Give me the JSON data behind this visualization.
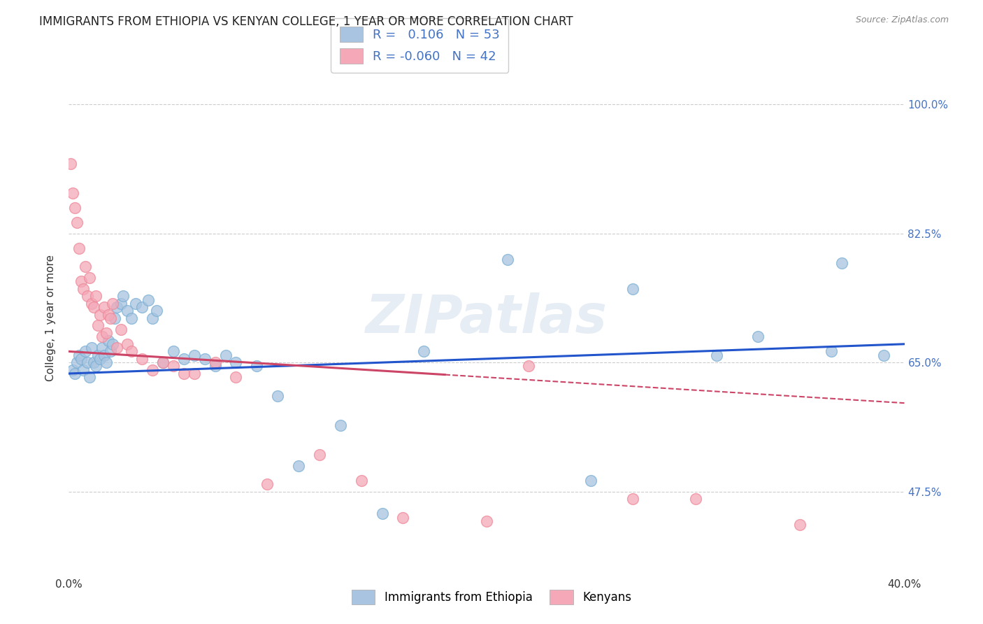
{
  "title": "IMMIGRANTS FROM ETHIOPIA VS KENYAN COLLEGE, 1 YEAR OR MORE CORRELATION CHART",
  "source": "Source: ZipAtlas.com",
  "ylabel": "College, 1 year or more",
  "xlim": [
    0.0,
    40.0
  ],
  "ylim": [
    38.0,
    104.0
  ],
  "watermark": "ZIPatlas",
  "legend_r1": "R =   0.106   N = 53",
  "legend_r2": "R = -0.060   N = 42",
  "blue_scatter_x": [
    0.2,
    0.3,
    0.4,
    0.5,
    0.6,
    0.7,
    0.8,
    0.9,
    1.0,
    1.1,
    1.2,
    1.3,
    1.4,
    1.5,
    1.6,
    1.7,
    1.8,
    1.9,
    2.0,
    2.1,
    2.2,
    2.3,
    2.5,
    2.6,
    2.8,
    3.0,
    3.2,
    3.5,
    3.8,
    4.0,
    4.2,
    4.5,
    5.0,
    5.5,
    6.0,
    6.5,
    7.0,
    7.5,
    8.0,
    9.0,
    10.0,
    11.0,
    13.0,
    15.0,
    17.0,
    21.0,
    27.0,
    33.0,
    37.0,
    39.0,
    36.5,
    31.0,
    25.0
  ],
  "blue_scatter_y": [
    64.0,
    63.5,
    65.0,
    66.0,
    65.5,
    64.0,
    66.5,
    65.0,
    63.0,
    67.0,
    65.0,
    64.5,
    66.0,
    65.5,
    67.0,
    66.0,
    65.0,
    68.0,
    66.5,
    67.5,
    71.0,
    72.5,
    73.0,
    74.0,
    72.0,
    71.0,
    73.0,
    72.5,
    73.5,
    71.0,
    72.0,
    65.0,
    66.5,
    65.5,
    66.0,
    65.5,
    64.5,
    66.0,
    65.0,
    64.5,
    60.5,
    51.0,
    56.5,
    44.5,
    66.5,
    79.0,
    75.0,
    68.5,
    78.5,
    66.0,
    66.5,
    66.0,
    49.0
  ],
  "pink_scatter_x": [
    0.1,
    0.2,
    0.3,
    0.4,
    0.5,
    0.6,
    0.7,
    0.8,
    0.9,
    1.0,
    1.1,
    1.2,
    1.3,
    1.4,
    1.5,
    1.6,
    1.7,
    1.8,
    1.9,
    2.0,
    2.1,
    2.3,
    2.5,
    2.8,
    3.0,
    3.5,
    4.0,
    4.5,
    5.0,
    5.5,
    6.0,
    7.0,
    8.0,
    9.5,
    12.0,
    14.0,
    16.0,
    20.0,
    22.0,
    27.0,
    30.0,
    35.0
  ],
  "pink_scatter_y": [
    92.0,
    88.0,
    86.0,
    84.0,
    80.5,
    76.0,
    75.0,
    78.0,
    74.0,
    76.5,
    73.0,
    72.5,
    74.0,
    70.0,
    71.5,
    68.5,
    72.5,
    69.0,
    71.5,
    71.0,
    73.0,
    67.0,
    69.5,
    67.5,
    66.5,
    65.5,
    64.0,
    65.0,
    64.5,
    63.5,
    63.5,
    65.0,
    63.0,
    48.5,
    52.5,
    49.0,
    44.0,
    43.5,
    64.5,
    46.5,
    46.5,
    43.0
  ],
  "blue_line_x": [
    0.0,
    40.0
  ],
  "blue_line_y": [
    63.5,
    67.5
  ],
  "pink_line_x": [
    0.0,
    40.0
  ],
  "pink_line_y": [
    66.5,
    59.5
  ],
  "pink_line_solid_end": 18.0,
  "grid_color": "#cccccc",
  "blue_color": "#a8c4e0",
  "pink_color": "#f4a8b8",
  "blue_edge_color": "#7bafd4",
  "pink_edge_color": "#ee8899",
  "blue_line_color": "#2255cc",
  "pink_line_color": "#cc4466",
  "background_color": "#ffffff",
  "title_fontsize": 12,
  "axis_label_fontsize": 11,
  "tick_fontsize": 11,
  "right_tick_color": "#4472c4",
  "legend_text_color": "#4472c4",
  "source_color": "#888888"
}
